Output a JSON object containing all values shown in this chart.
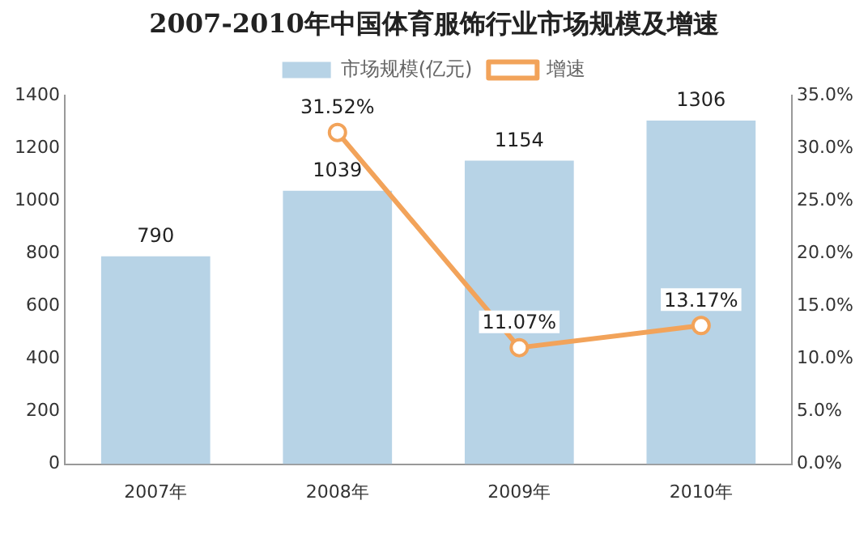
{
  "chart_data": {
    "type": "bar",
    "title": "2007-2010年中国体育服饰行业市场规模及增速",
    "categories": [
      "2007年",
      "2008年",
      "2009年",
      "2010年"
    ],
    "series": [
      {
        "name": "市场规模(亿元)",
        "color": "#b7d3e6",
        "values": [
          790,
          1039,
          1154,
          1306
        ],
        "value_labels": [
          "790",
          "1039",
          "1154",
          "1306"
        ]
      },
      {
        "name": "增速",
        "type": "line",
        "axis": "y2",
        "color": "#f2a35a",
        "marker": "circle",
        "values": [
          null,
          31.52,
          11.07,
          13.17
        ],
        "value_labels": [
          null,
          "31.52%",
          "11.07%",
          "13.17%"
        ]
      }
    ],
    "ylim": [
      0,
      1400
    ],
    "yticks": [
      0,
      200,
      400,
      600,
      800,
      1000,
      1200,
      1400
    ],
    "y2lim": [
      0,
      35
    ],
    "y2ticks": [
      {
        "value": 0,
        "label": "0.0%"
      },
      {
        "value": 5,
        "label": "5.0%"
      },
      {
        "value": 10,
        "label": "10.0%"
      },
      {
        "value": 15,
        "label": "15.0%"
      },
      {
        "value": 20,
        "label": "20.0%"
      },
      {
        "value": 25,
        "label": "25.0%"
      },
      {
        "value": 30,
        "label": "30.0%"
      },
      {
        "value": 35,
        "label": "35.0%"
      }
    ],
    "legend": "top",
    "grid": false
  }
}
